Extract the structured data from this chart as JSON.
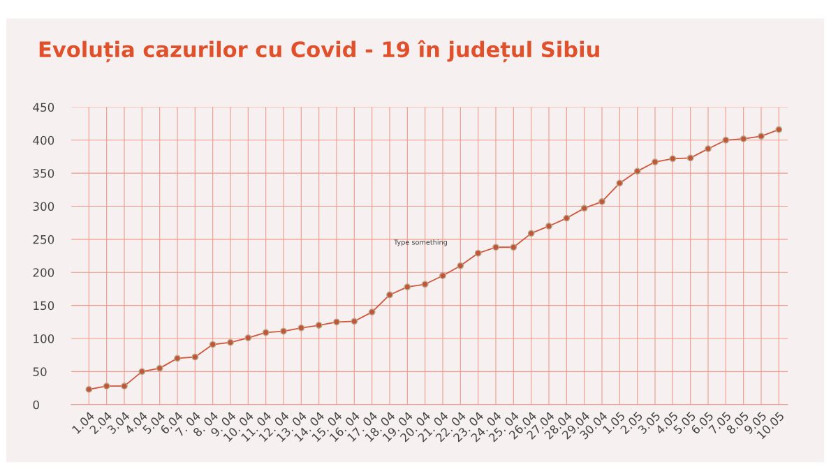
{
  "chart_data": {
    "type": "line",
    "title": "Evoluția cazurilor cu Covid - 19 în județul Sibiu",
    "categories": [
      "1.04",
      "2.04",
      "3.04",
      "4.04",
      "5.04",
      "6.04",
      "7. 04",
      "8. 04",
      "9. 04",
      "10. 04",
      "11. 04",
      "12. 04",
      "13. 04",
      "14. 04",
      "15. 04",
      "16. 04",
      "17. 04",
      "18. 04",
      "19. 04",
      "20. 04",
      "21. 04",
      "22. 04",
      "23. 04",
      "24. 04",
      "25. 04",
      "26.04",
      "27.04",
      "28.04",
      "29.04",
      "30.04",
      "1.05",
      "2.05",
      "3.05",
      "4.05",
      "5.05",
      "6.05",
      "7.05",
      "8.05",
      "9.05",
      "10.05"
    ],
    "series": [
      {
        "color": "#d0563a",
        "values": [
          23,
          28,
          28,
          50,
          55,
          70,
          72,
          91,
          94,
          101,
          109,
          111,
          116,
          120,
          125,
          126,
          140,
          166,
          178,
          182,
          195,
          210,
          229,
          238,
          238,
          259,
          270,
          282,
          297,
          307,
          335,
          353,
          367,
          372,
          373,
          387,
          400,
          402,
          406,
          416
        ]
      }
    ],
    "ylim": [
      0,
      450
    ],
    "yticks": [
      0,
      50,
      100,
      150,
      200,
      250,
      300,
      350,
      400,
      450
    ],
    "grid": true,
    "marker": "circle",
    "line_style": "solid",
    "annotations": [
      "Type something"
    ]
  }
}
